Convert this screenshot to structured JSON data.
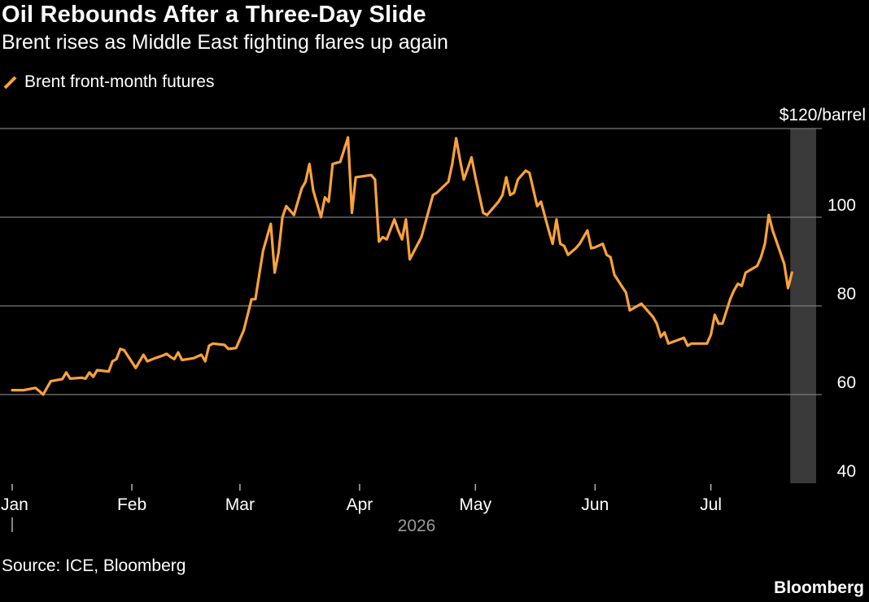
{
  "header": {
    "title": "Oil Rebounds After a Three-Day Slide",
    "subtitle": "Brent rises as Middle East fighting flares up again"
  },
  "footer": {
    "source": "Source: ICE, Bloomberg",
    "brand": "Bloomberg"
  },
  "colors": {
    "background": "#000000",
    "series": "#fca23a",
    "grid": "#7a7a7a",
    "highlight": "#3a3a3a"
  },
  "chart_data": {
    "type": "line",
    "title": "Oil Rebounds After a Three-Day Slide",
    "subtitle": "Brent rises as Middle East fighting flares up again",
    "ylabel": "",
    "y_unit_label": "$120/barrel",
    "ylim": [
      40,
      120
    ],
    "y_ticks": [
      40,
      60,
      80,
      100
    ],
    "x_ticks": [
      {
        "label": "Jan",
        "date": "2026-01-01"
      },
      {
        "label": "Feb",
        "date": "2026-02-01"
      },
      {
        "label": "Mar",
        "date": "2026-03-01"
      },
      {
        "label": "Apr",
        "date": "2026-04-01"
      },
      {
        "label": "May",
        "date": "2026-05-01"
      },
      {
        "label": "Jun",
        "date": "2026-06-01"
      },
      {
        "label": "Jul",
        "date": "2026-07-01"
      }
    ],
    "year_label": "2026",
    "grid": true,
    "legend_position": "top-left",
    "highlight_range": [
      "2026-07-22",
      "2026-07-27"
    ],
    "series": [
      {
        "name": "Brent front-month futures",
        "points": [
          [
            "2026-01-01",
            61.0
          ],
          [
            "2026-01-04",
            61.0
          ],
          [
            "2026-01-07",
            61.5
          ],
          [
            "2026-01-08",
            60.8
          ],
          [
            "2026-01-09",
            60.0
          ],
          [
            "2026-01-11",
            63.0
          ],
          [
            "2026-01-14",
            63.5
          ],
          [
            "2026-01-15",
            65.0
          ],
          [
            "2026-01-16",
            63.6
          ],
          [
            "2026-01-19",
            63.8
          ],
          [
            "2026-01-20",
            63.6
          ],
          [
            "2026-01-21",
            65.0
          ],
          [
            "2026-01-22",
            64.0
          ],
          [
            "2026-01-23",
            65.5
          ],
          [
            "2026-01-26",
            65.2
          ],
          [
            "2026-01-27",
            67.5
          ],
          [
            "2026-01-28",
            68.0
          ],
          [
            "2026-01-29",
            70.3
          ],
          [
            "2026-01-30",
            70.0
          ],
          [
            "2026-02-02",
            66.0
          ],
          [
            "2026-02-04",
            69.0
          ],
          [
            "2026-02-05",
            67.5
          ],
          [
            "2026-02-07",
            68.2
          ],
          [
            "2026-02-08",
            68.5
          ],
          [
            "2026-02-09",
            68.8
          ],
          [
            "2026-02-10",
            69.2
          ],
          [
            "2026-02-11",
            68.5
          ],
          [
            "2026-02-12",
            68.0
          ],
          [
            "2026-02-13",
            69.5
          ],
          [
            "2026-02-14",
            67.8
          ],
          [
            "2026-02-17",
            68.2
          ],
          [
            "2026-02-19",
            69.0
          ],
          [
            "2026-02-20",
            67.5
          ],
          [
            "2026-02-21",
            71.0
          ],
          [
            "2026-02-22",
            71.5
          ],
          [
            "2026-02-25",
            71.2
          ],
          [
            "2026-02-26",
            70.3
          ],
          [
            "2026-02-28",
            70.5
          ],
          [
            "2026-03-02",
            74.5
          ],
          [
            "2026-03-03",
            78.0
          ],
          [
            "2026-03-04",
            81.5
          ],
          [
            "2026-03-05",
            81.5
          ],
          [
            "2026-03-06",
            87.0
          ],
          [
            "2026-03-07",
            92.5
          ],
          [
            "2026-03-09",
            98.5
          ],
          [
            "2026-03-10",
            87.5
          ],
          [
            "2026-03-11",
            92.0
          ],
          [
            "2026-03-12",
            100.0
          ],
          [
            "2026-03-13",
            102.5
          ],
          [
            "2026-03-15",
            100.5
          ],
          [
            "2026-03-17",
            106.5
          ],
          [
            "2026-03-18",
            108.0
          ],
          [
            "2026-03-19",
            112.0
          ],
          [
            "2026-03-20",
            106.0
          ],
          [
            "2026-03-22",
            100.0
          ],
          [
            "2026-03-23",
            104.5
          ],
          [
            "2026-03-24",
            103.5
          ],
          [
            "2026-03-25",
            112.0
          ],
          [
            "2026-03-27",
            112.5
          ],
          [
            "2026-03-29",
            118.0
          ],
          [
            "2026-03-30",
            101.0
          ],
          [
            "2026-03-31",
            109.0
          ],
          [
            "2026-04-04",
            109.5
          ],
          [
            "2026-04-05",
            108.5
          ],
          [
            "2026-04-06",
            94.5
          ],
          [
            "2026-04-07",
            95.5
          ],
          [
            "2026-04-08",
            95.0
          ],
          [
            "2026-04-10",
            99.5
          ],
          [
            "2026-04-11",
            97.0
          ],
          [
            "2026-04-12",
            95.0
          ],
          [
            "2026-04-13",
            99.5
          ],
          [
            "2026-04-14",
            90.5
          ],
          [
            "2026-04-17",
            95.5
          ],
          [
            "2026-04-20",
            105.0
          ],
          [
            "2026-04-21",
            105.5
          ],
          [
            "2026-04-24",
            108.0
          ],
          [
            "2026-04-25",
            112.0
          ],
          [
            "2026-04-26",
            117.8
          ],
          [
            "2026-04-27",
            113.0
          ],
          [
            "2026-04-28",
            108.5
          ],
          [
            "2026-04-29",
            111.0
          ],
          [
            "2026-04-30",
            113.5
          ],
          [
            "2026-05-01",
            109.0
          ],
          [
            "2026-05-03",
            101.0
          ],
          [
            "2026-05-04",
            100.5
          ],
          [
            "2026-05-05",
            101.5
          ],
          [
            "2026-05-07",
            103.5
          ],
          [
            "2026-05-08",
            105.0
          ],
          [
            "2026-05-09",
            109.0
          ],
          [
            "2026-05-10",
            105.0
          ],
          [
            "2026-05-11",
            105.5
          ],
          [
            "2026-05-12",
            108.5
          ],
          [
            "2026-05-14",
            110.5
          ],
          [
            "2026-05-15",
            110.0
          ],
          [
            "2026-05-17",
            102.5
          ],
          [
            "2026-05-18",
            103.5
          ],
          [
            "2026-05-20",
            97.0
          ],
          [
            "2026-05-21",
            94.0
          ],
          [
            "2026-05-22",
            99.5
          ],
          [
            "2026-05-23",
            94.0
          ],
          [
            "2026-05-24",
            93.5
          ],
          [
            "2026-05-25",
            91.5
          ],
          [
            "2026-05-27",
            93.0
          ],
          [
            "2026-05-28",
            94.0
          ],
          [
            "2026-05-30",
            97.0
          ],
          [
            "2026-05-31",
            93.0
          ],
          [
            "2026-06-01",
            93.2
          ],
          [
            "2026-06-03",
            94.0
          ],
          [
            "2026-06-04",
            91.5
          ],
          [
            "2026-06-05",
            91.0
          ],
          [
            "2026-06-06",
            87.0
          ],
          [
            "2026-06-09",
            83.0
          ],
          [
            "2026-06-10",
            79.0
          ],
          [
            "2026-06-11",
            79.5
          ],
          [
            "2026-06-13",
            80.5
          ],
          [
            "2026-06-16",
            77.5
          ],
          [
            "2026-06-17",
            76.0
          ],
          [
            "2026-06-18",
            73.0
          ],
          [
            "2026-06-19",
            74.0
          ],
          [
            "2026-06-20",
            71.5
          ],
          [
            "2026-06-24",
            72.8
          ],
          [
            "2026-06-25",
            71.0
          ],
          [
            "2026-06-26",
            71.5
          ],
          [
            "2026-06-30",
            71.5
          ],
          [
            "2026-07-01",
            73.5
          ],
          [
            "2026-07-02",
            78.0
          ],
          [
            "2026-07-03",
            76.0
          ],
          [
            "2026-07-04",
            76.0
          ],
          [
            "2026-07-06",
            81.5
          ],
          [
            "2026-07-07",
            83.5
          ],
          [
            "2026-07-08",
            85.0
          ],
          [
            "2026-07-09",
            84.5
          ],
          [
            "2026-07-10",
            87.5
          ],
          [
            "2026-07-13",
            89.0
          ],
          [
            "2026-07-14",
            91.0
          ],
          [
            "2026-07-15",
            94.0
          ],
          [
            "2026-07-16",
            100.5
          ],
          [
            "2026-07-17",
            97.0
          ],
          [
            "2026-07-20",
            89.5
          ],
          [
            "2026-07-21",
            84.0
          ],
          [
            "2026-07-22",
            87.5
          ]
        ]
      }
    ]
  }
}
